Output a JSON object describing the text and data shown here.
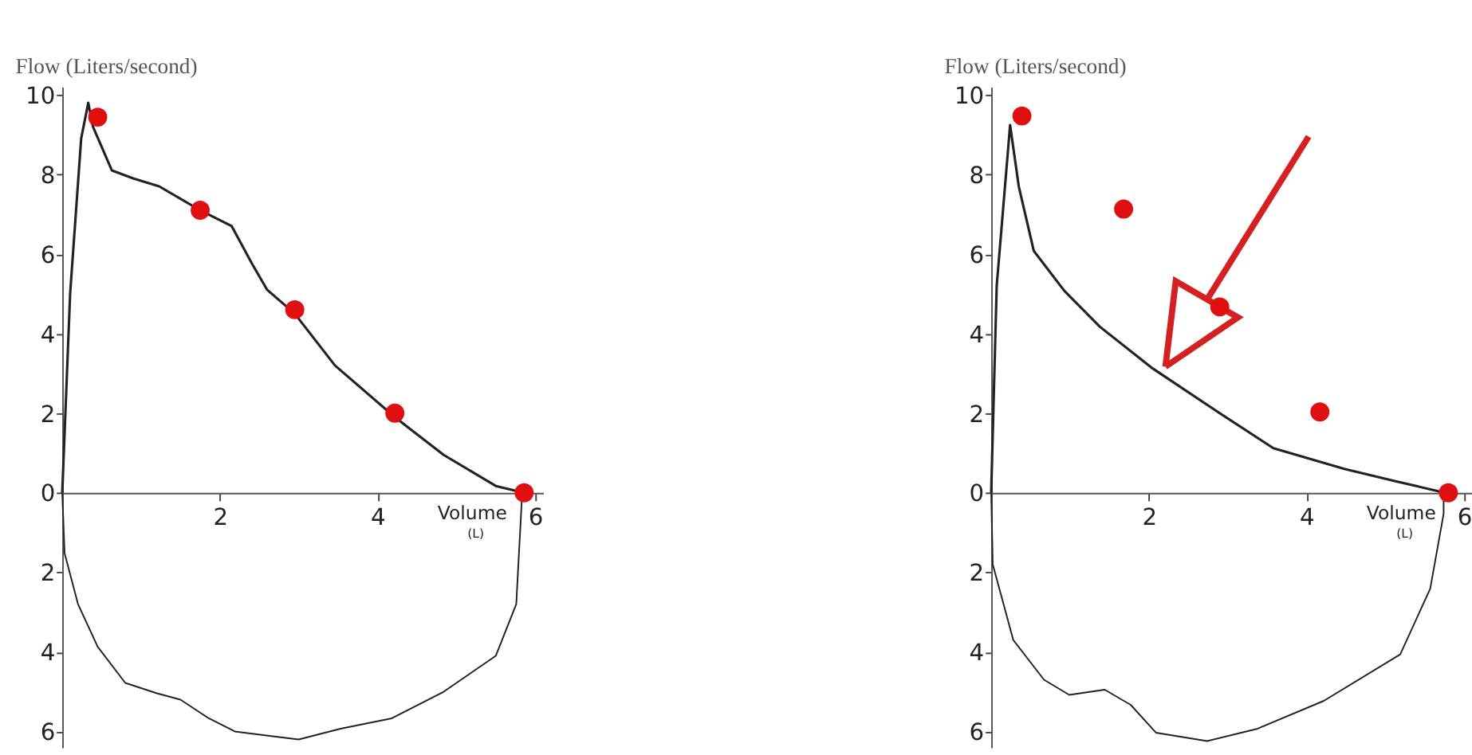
{
  "chart_data": [
    {
      "type": "line",
      "ylabel": "Flow (Liters/second)",
      "xlabel": "Volume (L)",
      "xlim": [
        0,
        6.1
      ],
      "ylim": [
        -6.4,
        10.2
      ],
      "xticks": [
        2,
        4,
        6
      ],
      "yticks": [
        10,
        8,
        6,
        4,
        2,
        0,
        {
          "value": -2,
          "label": "2"
        },
        {
          "value": -4,
          "label": "4"
        },
        {
          "value": -6,
          "label": "6"
        }
      ],
      "grid": false,
      "series": [
        {
          "color": "#222222",
          "x": [
            0,
            0.1,
            0.24,
            0.33,
            0.39,
            0.63,
            0.9,
            1.23,
            1.75,
            2.15,
            2.41,
            2.6,
            2.95,
            3.46,
            4.22,
            4.84,
            5.5,
            5.86
          ],
          "values": [
            0,
            5.0,
            8.9,
            9.8,
            9.2,
            8.1,
            7.9,
            7.7,
            7.1,
            6.7,
            5.75,
            5.1,
            4.5,
            3.2,
            1.9,
            0.95,
            0.17,
            0
          ]
        },
        {
          "color": "#222222",
          "x": [
            0,
            0.03,
            0.2,
            0.45,
            0.8,
            1.2,
            1.5,
            1.86,
            2.19,
            2.67,
            3.0,
            3.53,
            4.18,
            4.84,
            5.5,
            5.76,
            5.83,
            5.86
          ],
          "values": [
            0,
            -1.52,
            -2.8,
            -3.87,
            -4.78,
            -5.04,
            -5.2,
            -5.67,
            -6.0,
            -6.12,
            -6.2,
            -5.93,
            -5.67,
            -5.0,
            -4.1,
            -2.8,
            -0.2,
            0
          ]
        },
        {
          "type": "scatter",
          "marker": "circle",
          "color": "#e01010",
          "x": [
            0.45,
            1.75,
            2.95,
            4.22,
            5.86
          ],
          "values": [
            9.44,
            7.1,
            4.6,
            2.0,
            0
          ]
        }
      ]
    },
    {
      "type": "line",
      "ylabel": "Flow (Liters/second)",
      "xlabel": "Volume (L)",
      "xlim": [
        0,
        6.1
      ],
      "ylim": [
        -6.4,
        10.2
      ],
      "xticks": [
        2,
        4,
        6
      ],
      "yticks": [
        10,
        8,
        6,
        4,
        2,
        0,
        {
          "value": -2,
          "label": "2"
        },
        {
          "value": -4,
          "label": "4"
        },
        {
          "value": -6,
          "label": "6"
        }
      ],
      "grid": false,
      "series": [
        {
          "color": "#222222",
          "x": [
            0,
            0.07,
            0.24,
            0.35,
            0.54,
            0.93,
            1.38,
            2.03,
            2.8,
            3.58,
            4.48,
            5.13,
            5.67,
            5.74
          ],
          "values": [
            0,
            5.2,
            9.24,
            7.7,
            6.08,
            5.07,
            4.17,
            3.15,
            2.13,
            1.12,
            0.6,
            0.29,
            0.04,
            0
          ]
        },
        {
          "color": "#222222",
          "x": [
            0,
            0.02,
            0.28,
            0.67,
            0.99,
            1.44,
            1.77,
            2.09,
            2.74,
            3.38,
            4.22,
            5.19,
            5.57,
            5.74,
            5.74
          ],
          "values": [
            0,
            -1.8,
            -3.7,
            -4.7,
            -5.08,
            -4.95,
            -5.33,
            -6.03,
            -6.24,
            -5.93,
            -5.23,
            -4.06,
            -2.41,
            -0.53,
            0
          ]
        },
        {
          "type": "scatter",
          "marker": "circle",
          "color": "#e01010",
          "x": [
            0.39,
            1.68,
            2.9,
            4.17,
            5.8
          ],
          "values": [
            9.47,
            7.13,
            4.67,
            2.03,
            0
          ]
        }
      ]
    }
  ]
}
